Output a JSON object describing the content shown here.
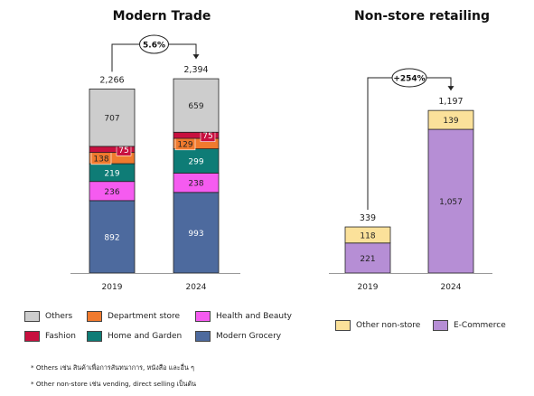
{
  "chart_data": [
    {
      "type": "bar",
      "stacked": true,
      "title": "Modern Trade",
      "categories": [
        "2019",
        "2024"
      ],
      "totals": [
        2266,
        2394
      ],
      "growth_label": "5.6%",
      "series": [
        {
          "name": "Modern Grocery",
          "color": "#4d6a9e",
          "values": [
            892,
            993
          ]
        },
        {
          "name": "Health and Beauty",
          "color": "#f55bf0",
          "values": [
            236,
            238
          ]
        },
        {
          "name": "Home and Garden",
          "color": "#0e7c76",
          "values": [
            219,
            299
          ]
        },
        {
          "name": "Department store",
          "color": "#f07a2e",
          "values": [
            138,
            129
          ]
        },
        {
          "name": "Fashion",
          "color": "#c8103f",
          "values": [
            75,
            75
          ]
        },
        {
          "name": "Others",
          "color": "#cdcdcd",
          "values": [
            707,
            659
          ]
        }
      ]
    },
    {
      "type": "bar",
      "stacked": true,
      "title": "Non-store retailing",
      "categories": [
        "2019",
        "2024"
      ],
      "totals": [
        339,
        1197
      ],
      "growth_label": "+254%",
      "series": [
        {
          "name": "E-Commerce",
          "color": "#b68ed5",
          "values": [
            221,
            1057
          ]
        },
        {
          "name": "Other non-store",
          "color": "#fbe19a",
          "values": [
            118,
            139
          ]
        }
      ]
    }
  ],
  "legend_left": {
    "items": [
      {
        "label": "Others",
        "color": "#cdcdcd"
      },
      {
        "label": "Department store",
        "color": "#f07a2e"
      },
      {
        "label": "Health and Beauty",
        "color": "#f55bf0"
      },
      {
        "label": "Fashion",
        "color": "#c8103f"
      },
      {
        "label": "Home and Garden",
        "color": "#0e7c76"
      },
      {
        "label": "Modern Grocery",
        "color": "#4d6a9e"
      }
    ]
  },
  "legend_right": {
    "items": [
      {
        "label": "Other non-store",
        "color": "#fbe19a"
      },
      {
        "label": "E-Commerce",
        "color": "#b68ed5"
      }
    ]
  },
  "footnotes": {
    "note1": "* Others เช่น สินค้าเพื่อการสันทนาการ, หนังสือ และอื่น ๆ",
    "note2": "* Other non-store เช่น vending, direct selling เป็นต้น"
  }
}
